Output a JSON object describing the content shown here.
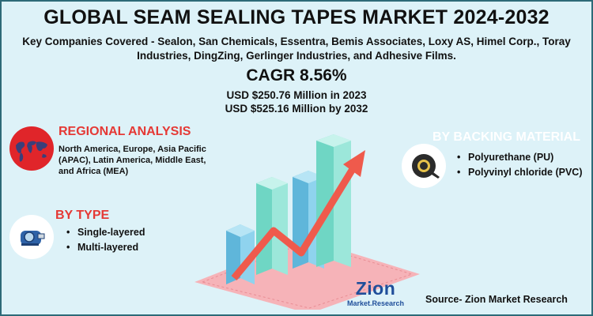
{
  "header": {
    "title": "GLOBAL SEAM SEALING TAPES MARKET 2024-2032",
    "companies_line1": "Key Companies Covered - Sealon, San Chemicals, Essentra, Bemis Associates, Loxy AS, Himel Corp., Toray",
    "companies_line2": "Industries, DingZing, Gerlinger Industries, and Adhesive Films.",
    "cagr": "CAGR 8.56%",
    "usd_2023": "USD $250.76 Million  in 2023",
    "usd_2032": "USD $525.16 Million  by 2032"
  },
  "regional": {
    "title": "REGIONAL ANALYSIS",
    "line1": "North America, Europe, Asia Pacific",
    "line2": "(APAC), Latin America, Middle East,",
    "line3": "and Africa (MEA)",
    "icon": "world-map-icon"
  },
  "type": {
    "title": "BY TYPE",
    "items": [
      "Single-layered",
      "Multi-layered"
    ],
    "icon": "tape-dispenser-icon"
  },
  "backing": {
    "title": "BY BACKING MATERIAL",
    "items": [
      "Polyurethane (PU)",
      "Polyvinyl chloride (PVC)"
    ],
    "icon": "tape-roll-icon"
  },
  "logo": {
    "name": "Zion",
    "sub": "Market.Research"
  },
  "source": "Source- Zion Market Research",
  "colors": {
    "background": "#ddf2f8",
    "accent_red": "#e53935",
    "circle_fill": "#ffffff",
    "bar_teal": "#7fe0cf",
    "bar_blue": "#6ec6e8",
    "bar_pink": "#f6b3b8",
    "arrow": "#ef5a4c"
  }
}
